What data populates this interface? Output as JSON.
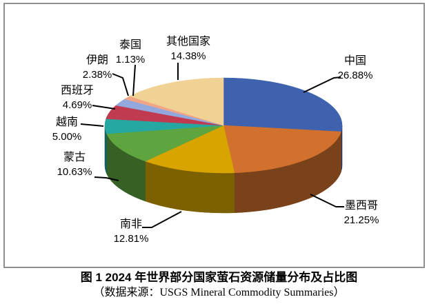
{
  "figure": {
    "caption_line1": "图 1  2024 年世界部分国家萤石资源储量分布及占比图",
    "caption_line2": "（数据来源：USGS Mineral Commodity Summaries）"
  },
  "chart_data": {
    "type": "pie",
    "style": "3d",
    "title": "2024 年世界部分国家萤石资源储量分布及占比图",
    "source": "USGS Mineral Commodity Summaries",
    "unit": "%",
    "direction": "clockwise",
    "start_angle_deg": 0,
    "legend": "none",
    "categories": [
      "中国",
      "墨西哥",
      "南非",
      "蒙古",
      "越南",
      "西班牙",
      "伊朗",
      "泰国",
      "其他国家"
    ],
    "values": [
      26.88,
      21.25,
      12.81,
      10.63,
      5.0,
      4.69,
      2.38,
      1.13,
      14.38
    ],
    "labels": [
      "26.88%",
      "21.25%",
      "12.81%",
      "10.63%",
      "5.00%",
      "4.69%",
      "2.38%",
      "1.13%",
      "14.38%"
    ],
    "colors": [
      "#3e62ad",
      "#d2712e",
      "#d8a500",
      "#5fa53f",
      "#25a8a2",
      "#c03a50",
      "#93a9dd",
      "#f2a584",
      "#f0d295"
    ],
    "frame_border_color": "#8f8f8f",
    "leader_line_color": "#000000"
  }
}
